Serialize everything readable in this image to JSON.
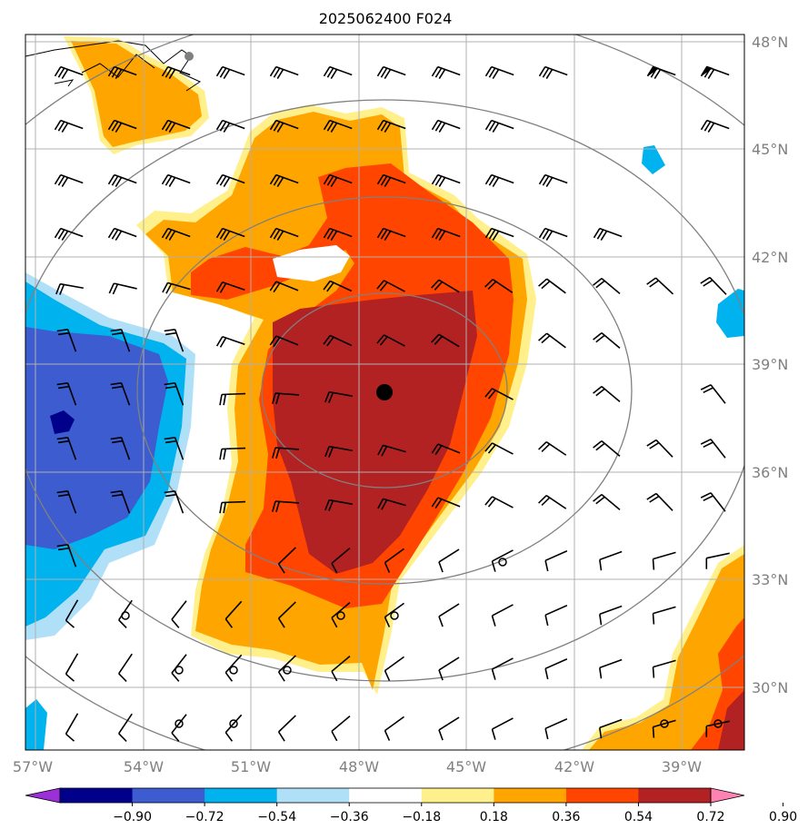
{
  "title": "2025062400 F024",
  "lon_labels": [
    "57°W",
    "54°W",
    "51°W",
    "48°W",
    "45°W",
    "42°W",
    "39°W"
  ],
  "lat_labels": [
    "48°N",
    "45°N",
    "42°N",
    "39°N",
    "36°N",
    "33°N",
    "30°N"
  ],
  "colorbar": {
    "ticks": [
      "−0.90",
      "−0.72",
      "−0.54",
      "−0.36",
      "−0.18",
      "0.18",
      "0.36",
      "0.54",
      "0.72",
      "0.90"
    ],
    "colors": [
      "#9b30d8",
      "#00008b",
      "#3c5ccf",
      "#00b2ee",
      "#b0e0f8",
      "#ffffff",
      "#fff08c",
      "#ffa500",
      "#ff4500",
      "#b22222",
      "#ff82b4"
    ]
  },
  "map": {
    "center_marker": "storm-center",
    "range_rings": 4,
    "field": "shaded anomaly with wind barbs"
  }
}
